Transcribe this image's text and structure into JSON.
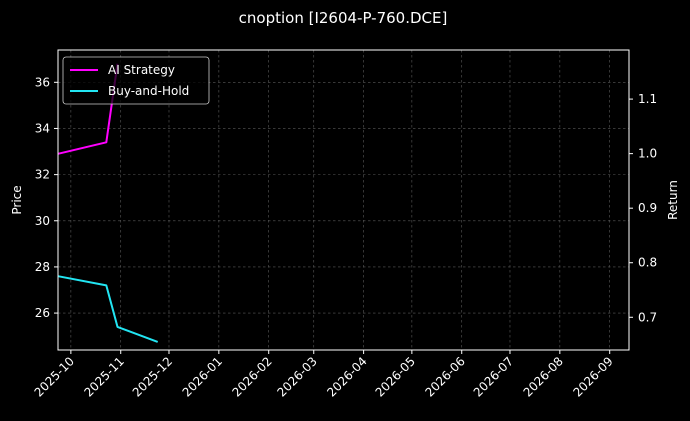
{
  "chart_data": {
    "type": "line",
    "title": "cnoption [I2604-P-760.DCE]",
    "ylabel_left": "Price",
    "ylabel_right": "Return",
    "xlim": [
      "2025-09-23",
      "2026-09-13"
    ],
    "ylim_left": [
      24.4,
      37.4
    ],
    "ylim_right": [
      0.64,
      1.19
    ],
    "x_ticks": [
      "2025-10-01",
      "2025-11-01",
      "2025-12-01",
      "2026-01-01",
      "2026-02-01",
      "2026-03-01",
      "2026-04-01",
      "2026-05-01",
      "2026-06-01",
      "2026-07-01",
      "2026-08-01",
      "2026-09-01"
    ],
    "x_tick_labels": [
      "2025-10",
      "2025-11",
      "2025-12",
      "2026-01",
      "2026-02",
      "2026-03",
      "2026-04",
      "2026-05",
      "2026-06",
      "2026-07",
      "2026-08",
      "2026-09"
    ],
    "y_ticks_left": [
      26,
      28,
      30,
      32,
      34,
      36
    ],
    "y_ticks_right": [
      0.7,
      0.8,
      0.9,
      1.0,
      1.1
    ],
    "y_tick_labels_right": [
      "0.7",
      "0.8",
      "0.9",
      "1.0",
      "1.1"
    ],
    "grid": true,
    "legend_position": "top-left",
    "series": [
      {
        "name": "AI Strategy",
        "axis": "left",
        "color": "#ff00ff",
        "x": [
          "2025-09-23",
          "2025-10-23",
          "2025-10-30"
        ],
        "y": [
          32.9,
          33.4,
          36.8
        ]
      },
      {
        "name": "Buy-and-Hold",
        "axis": "left",
        "color": "#22e5f2",
        "x": [
          "2025-09-23",
          "2025-10-23",
          "2025-10-30",
          "2025-11-24"
        ],
        "y": [
          27.6,
          27.2,
          25.4,
          24.75
        ]
      }
    ]
  }
}
